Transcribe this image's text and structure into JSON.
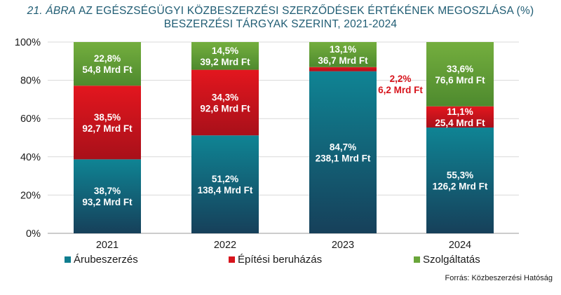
{
  "title": {
    "number": "21. ÁBRA",
    "line1_rest": " AZ EGÉSZSÉGÜGYI KÖZBESZERZÉSI SZERZŐDÉSEK ÉRTÉKÉNEK MEGOSZLÁSA (%)",
    "line2": "BESZERZÉSI TÁRGYAK SZERINT, 2021-2024"
  },
  "source": "Forrás: Közbeszerzési Hatóság",
  "chart_data": {
    "type": "bar",
    "stacked": true,
    "categories": [
      "2021",
      "2022",
      "2023",
      "2024"
    ],
    "ylim": [
      0,
      100
    ],
    "y_ticks": [
      "0%",
      "20%",
      "40%",
      "60%",
      "80%",
      "100%"
    ],
    "grid": true,
    "legend_position": "bottom",
    "series": [
      {
        "name": "Árubeszerzés",
        "color": "#0f7d8f",
        "values": [
          38.7,
          51.2,
          84.7,
          55.3
        ],
        "labels": [
          [
            "38,7%",
            "93,2 Mrd Ft"
          ],
          [
            "51,2%",
            "138,4 Mrd Ft"
          ],
          [
            "84,7%",
            "238,1 Mrd Ft"
          ],
          [
            "55,3%",
            "126,2 Mrd Ft"
          ]
        ]
      },
      {
        "name": "Építési beruházás",
        "color": "#d7141c",
        "values": [
          38.5,
          34.3,
          2.2,
          11.1
        ],
        "labels": [
          [
            "38,5%",
            "92,7 Mrd Ft"
          ],
          [
            "34,3%",
            "92,6 Mrd Ft"
          ],
          [
            "2,2%",
            "6,2 Mrd Ft"
          ],
          [
            "11,1%",
            "25,4 Mrd Ft"
          ]
        ]
      },
      {
        "name": "Szolgáltatás",
        "color": "#6aa63a",
        "values": [
          22.8,
          14.5,
          13.1,
          33.6
        ],
        "labels": [
          [
            "22,8%",
            "54,8 Mrd Ft"
          ],
          [
            "14,5%",
            "39,2 Mrd Ft"
          ],
          [
            "13,1%",
            "36,7 Mrd Ft"
          ],
          [
            "33,6%",
            "76,6 Mrd Ft"
          ]
        ]
      }
    ]
  }
}
